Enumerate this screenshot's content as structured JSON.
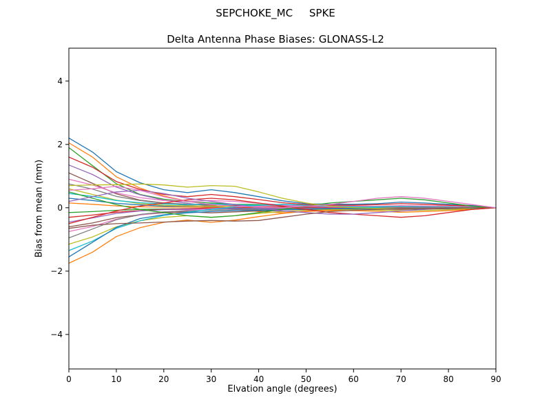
{
  "figure": {
    "background": "#ffffff",
    "suptitle": "SEPCHOKE_MC     SPKE",
    "title": "Delta Antenna Phase Biases: GLONASS-L2"
  },
  "chart_data": {
    "type": "line",
    "title": "Delta Antenna Phase Biases: GLONASS-L2",
    "suptitle": "SEPCHOKE_MC     SPKE",
    "xlabel": "Elvation angle (degrees)",
    "ylabel": "Bias from mean (mm)",
    "xlim": [
      0,
      90
    ],
    "ylim": [
      -5.09,
      5.04
    ],
    "xticks": [
      0,
      10,
      20,
      30,
      40,
      50,
      60,
      70,
      80,
      90
    ],
    "xtick_labels": [
      "0",
      "10",
      "20",
      "30",
      "40",
      "50",
      "60",
      "70",
      "80",
      "90"
    ],
    "yticks": [
      -4,
      -2,
      0,
      2,
      4
    ],
    "ytick_labels": [
      "−4",
      "−2",
      "0",
      "2",
      "4"
    ],
    "grid": false,
    "legend": "none",
    "axis_color": "#000000",
    "palette": [
      "#1f77b4",
      "#ff7f0e",
      "#2ca02c",
      "#d62728",
      "#9467bd",
      "#8c564b",
      "#e377c2",
      "#7f7f7f",
      "#bcbd22",
      "#17becf"
    ],
    "x": [
      0,
      5,
      10,
      15,
      20,
      25,
      30,
      35,
      40,
      45,
      50,
      55,
      60,
      65,
      70,
      75,
      80,
      85,
      90
    ],
    "series": [
      {
        "name": "line-01",
        "values": [
          2.2,
          1.76,
          1.14,
          0.79,
          0.57,
          0.48,
          0.57,
          0.48,
          0.35,
          0.22,
          0.13,
          0.11,
          0.11,
          0.13,
          0.18,
          0.15,
          0.11,
          0.07,
          0.0
        ]
      },
      {
        "name": "line-02",
        "values": [
          2.05,
          1.6,
          0.98,
          0.62,
          0.37,
          0.21,
          0.08,
          -0.04,
          -0.12,
          -0.16,
          -0.12,
          -0.08,
          -0.04,
          0.0,
          0.04,
          0.04,
          0.02,
          0.02,
          0.0
        ]
      },
      {
        "name": "line-03",
        "values": [
          1.9,
          1.33,
          0.76,
          0.42,
          0.27,
          0.19,
          0.15,
          0.11,
          0.1,
          0.08,
          0.06,
          0.04,
          0.04,
          0.04,
          0.04,
          0.02,
          0.02,
          0.0,
          0.0
        ]
      },
      {
        "name": "line-04",
        "values": [
          1.6,
          1.28,
          0.83,
          0.58,
          0.42,
          0.35,
          0.42,
          0.35,
          0.26,
          0.16,
          0.1,
          0.08,
          0.08,
          0.1,
          0.13,
          0.11,
          0.08,
          0.05,
          0.0
        ]
      },
      {
        "name": "line-05",
        "values": [
          1.35,
          1.05,
          0.65,
          0.41,
          0.24,
          0.14,
          0.05,
          -0.03,
          -0.08,
          -0.11,
          -0.08,
          -0.05,
          -0.03,
          0.0,
          0.03,
          0.03,
          0.01,
          0.01,
          0.0
        ]
      },
      {
        "name": "line-06",
        "values": [
          1.1,
          0.77,
          0.44,
          0.24,
          0.15,
          0.11,
          0.09,
          0.07,
          0.06,
          0.04,
          0.03,
          0.02,
          0.02,
          0.02,
          0.02,
          0.01,
          0.01,
          0.0,
          0.0
        ]
      },
      {
        "name": "line-07",
        "values": [
          0.9,
          0.72,
          0.47,
          0.32,
          0.23,
          0.2,
          0.23,
          0.2,
          0.14,
          0.09,
          0.05,
          0.05,
          0.05,
          0.05,
          0.07,
          0.06,
          0.05,
          0.03,
          0.0
        ]
      },
      {
        "name": "line-08",
        "values": [
          0.75,
          0.59,
          0.36,
          0.23,
          0.14,
          0.08,
          0.03,
          -0.02,
          -0.05,
          -0.06,
          -0.05,
          -0.03,
          -0.02,
          0.0,
          0.02,
          0.02,
          0.01,
          0.01,
          0.0
        ]
      },
      {
        "name": "line-09",
        "values": [
          0.6,
          0.42,
          0.24,
          0.13,
          0.08,
          0.06,
          0.05,
          0.04,
          0.03,
          0.02,
          0.02,
          0.01,
          0.01,
          0.01,
          0.01,
          0.01,
          0.01,
          0.0,
          0.0
        ]
      },
      {
        "name": "line-10",
        "values": [
          0.45,
          0.36,
          0.23,
          0.16,
          0.12,
          0.1,
          0.12,
          0.1,
          0.07,
          0.05,
          0.03,
          0.02,
          0.02,
          0.03,
          0.04,
          0.03,
          0.02,
          0.01,
          0.0
        ]
      },
      {
        "name": "line-11",
        "values": [
          0.3,
          0.23,
          0.14,
          0.09,
          0.05,
          0.03,
          0.01,
          -0.01,
          -0.02,
          -0.02,
          -0.02,
          -0.01,
          -0.01,
          0.0,
          0.01,
          0.01,
          0.0,
          0.0,
          0.0
        ]
      },
      {
        "name": "line-12",
        "values": [
          0.15,
          0.11,
          0.06,
          0.03,
          0.02,
          0.02,
          0.01,
          0.01,
          0.01,
          0.01,
          0.0,
          0.0,
          0.0,
          0.0,
          0.0,
          0.0,
          0.0,
          0.0,
          0.0
        ]
      },
      {
        "name": "line-13",
        "values": [
          -0.15,
          -0.12,
          -0.08,
          -0.05,
          -0.04,
          -0.03,
          -0.04,
          -0.03,
          -0.02,
          -0.02,
          -0.01,
          -0.01,
          -0.01,
          -0.01,
          -0.01,
          -0.01,
          -0.01,
          0.0,
          0.0
        ]
      },
      {
        "name": "line-14",
        "values": [
          -0.3,
          -0.23,
          -0.14,
          -0.09,
          -0.05,
          -0.03,
          -0.01,
          0.01,
          0.02,
          0.02,
          0.02,
          0.01,
          0.01,
          0.0,
          -0.01,
          -0.01,
          0.0,
          0.0,
          0.0
        ]
      },
      {
        "name": "line-15",
        "values": [
          -0.45,
          -0.32,
          -0.18,
          -0.1,
          -0.06,
          -0.05,
          -0.04,
          -0.03,
          -0.02,
          -0.02,
          -0.01,
          -0.01,
          -0.01,
          -0.01,
          -0.01,
          0.0,
          0.0,
          0.0,
          0.0
        ]
      },
      {
        "name": "line-16",
        "values": [
          -0.6,
          -0.48,
          -0.31,
          -0.22,
          -0.16,
          -0.13,
          -0.16,
          -0.13,
          -0.1,
          -0.06,
          -0.04,
          -0.03,
          -0.03,
          -0.04,
          -0.05,
          -0.04,
          -0.03,
          -0.02,
          0.0
        ]
      },
      {
        "name": "line-17",
        "values": [
          -0.75,
          -0.59,
          -0.36,
          -0.23,
          -0.14,
          -0.08,
          -0.03,
          0.02,
          0.05,
          0.06,
          0.05,
          0.03,
          0.02,
          0.0,
          -0.02,
          -0.02,
          -0.01,
          -0.01,
          0.0
        ]
      },
      {
        "name": "line-18",
        "values": [
          -0.95,
          -0.67,
          -0.38,
          -0.21,
          -0.13,
          -0.1,
          -0.08,
          -0.06,
          -0.05,
          -0.04,
          -0.03,
          -0.02,
          -0.02,
          -0.02,
          -0.02,
          -0.01,
          -0.01,
          0.0,
          0.0
        ]
      },
      {
        "name": "line-19",
        "values": [
          -1.15,
          -0.92,
          -0.6,
          -0.41,
          -0.3,
          -0.25,
          -0.3,
          -0.25,
          -0.18,
          -0.12,
          -0.07,
          -0.06,
          -0.06,
          -0.07,
          -0.09,
          -0.08,
          -0.06,
          -0.03,
          0.0
        ]
      },
      {
        "name": "line-20",
        "values": [
          -1.35,
          -1.05,
          -0.65,
          -0.41,
          -0.24,
          -0.14,
          -0.05,
          0.03,
          0.08,
          0.11,
          0.08,
          0.05,
          0.03,
          0.0,
          -0.03,
          -0.03,
          -0.01,
          -0.01,
          0.0
        ]
      },
      {
        "name": "line-21",
        "values": [
          -1.55,
          -1.09,
          -0.62,
          -0.34,
          -0.22,
          -0.16,
          -0.12,
          -0.09,
          -0.08,
          -0.06,
          -0.05,
          -0.03,
          -0.03,
          -0.03,
          -0.03,
          -0.02,
          -0.02,
          0.0,
          0.0
        ]
      },
      {
        "name": "line-22",
        "values": [
          -1.75,
          -1.4,
          -0.91,
          -0.63,
          -0.46,
          -0.39,
          -0.46,
          -0.39,
          -0.28,
          -0.18,
          -0.11,
          -0.09,
          -0.09,
          -0.11,
          -0.14,
          -0.12,
          -0.09,
          -0.05,
          0.0
        ]
      },
      {
        "name": "line-23",
        "values": [
          0.5,
          0.3,
          0.1,
          -0.05,
          -0.15,
          -0.25,
          -0.3,
          -0.25,
          -0.15,
          -0.05,
          0.05,
          0.15,
          0.2,
          0.25,
          0.3,
          0.25,
          0.15,
          0.05,
          0.0
        ]
      },
      {
        "name": "line-24",
        "values": [
          -0.5,
          -0.3,
          -0.1,
          0.05,
          0.15,
          0.25,
          0.3,
          0.25,
          0.15,
          0.05,
          -0.05,
          -0.15,
          -0.2,
          -0.25,
          -0.3,
          -0.25,
          -0.15,
          -0.05,
          0.0
        ]
      },
      {
        "name": "line-25",
        "values": [
          0.2,
          0.35,
          0.5,
          0.55,
          0.45,
          0.3,
          0.2,
          0.1,
          0.0,
          -0.1,
          -0.15,
          -0.2,
          -0.2,
          -0.15,
          -0.1,
          -0.05,
          0.0,
          0.0,
          0.0
        ]
      },
      {
        "name": "line-26",
        "color": "#bcbd22",
        "values": [
          0.7,
          0.72,
          0.73,
          0.75,
          0.72,
          0.65,
          0.7,
          0.68,
          0.5,
          0.3,
          0.15,
          0.05,
          0.0,
          -0.02,
          -0.03,
          -0.02,
          -0.01,
          0.0,
          0.0
        ]
      },
      {
        "name": "line-27",
        "color": "#8c564b",
        "values": [
          -0.65,
          -0.55,
          -0.5,
          -0.48,
          -0.45,
          -0.42,
          -0.4,
          -0.42,
          -0.4,
          -0.3,
          -0.2,
          -0.12,
          -0.08,
          -0.05,
          -0.03,
          -0.02,
          -0.01,
          0.0,
          0.0
        ]
      },
      {
        "name": "line-28",
        "color": "#e377c2",
        "values": [
          0.55,
          0.6,
          0.68,
          0.55,
          0.35,
          0.2,
          0.1,
          0.05,
          0.02,
          0.0,
          0.05,
          0.1,
          0.2,
          0.3,
          0.35,
          0.3,
          0.2,
          0.1,
          0.0
        ]
      }
    ]
  }
}
